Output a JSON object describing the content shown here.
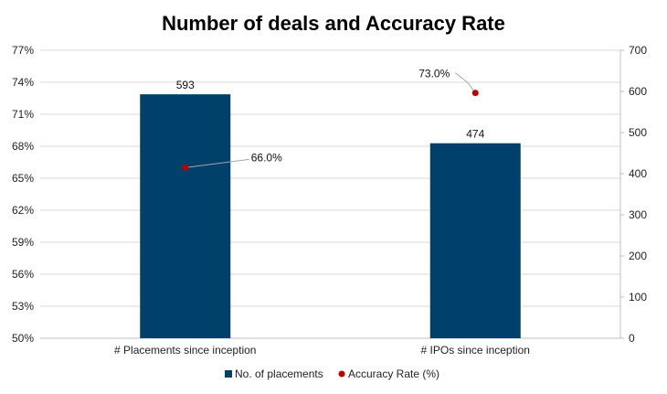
{
  "chart_data": {
    "type": "bar",
    "title": "Number of deals and Accuracy Rate",
    "categories": [
      "# Placements since inception",
      "# IPOs since inception"
    ],
    "series": [
      {
        "name": "No. of placements",
        "kind": "bar",
        "axis": "right",
        "color": "#00416B",
        "values": [
          593,
          474
        ],
        "labels": [
          "593",
          "474"
        ]
      },
      {
        "name": "Accuracy Rate (%)",
        "kind": "scatter",
        "axis": "left",
        "color": "#C00000",
        "values": [
          66.0,
          73.0
        ],
        "labels": [
          "66.0%",
          "73.0%"
        ]
      }
    ],
    "y_left": {
      "min": 50,
      "max": 77,
      "step": 3,
      "ticks": [
        "50%",
        "53%",
        "56%",
        "59%",
        "62%",
        "65%",
        "68%",
        "71%",
        "74%",
        "77%"
      ]
    },
    "y_right": {
      "min": 0,
      "max": 700,
      "step": 100,
      "ticks": [
        "0",
        "100",
        "200",
        "300",
        "400",
        "500",
        "600",
        "700"
      ]
    },
    "grid": true,
    "legend_position": "bottom"
  }
}
